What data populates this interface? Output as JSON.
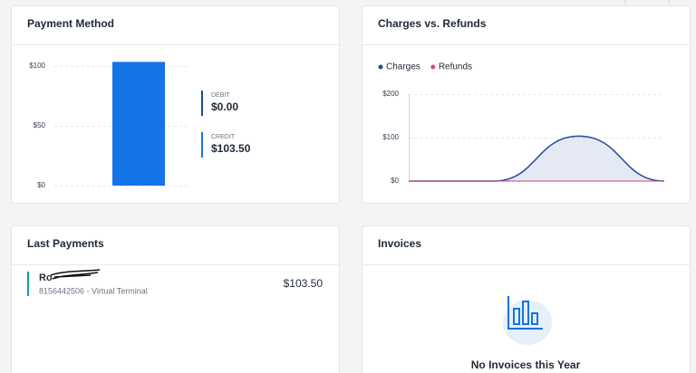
{
  "payment_method": {
    "title": "Payment Method",
    "chart": {
      "type": "bar",
      "categories": [
        null
      ],
      "values": [
        103.5
      ],
      "color": "#1473e6",
      "ylim": [
        0,
        100
      ],
      "yticks": [
        {
          "value": 0,
          "label": "$0"
        },
        {
          "value": 50,
          "label": "$50"
        },
        {
          "value": 100,
          "label": "$100"
        }
      ],
      "grid": true
    },
    "summary": [
      {
        "label": "DEBIT",
        "value": "$0.00",
        "color": "#1f4e99"
      },
      {
        "label": "CREDIT",
        "value": "$103.50",
        "color": "#1473e6"
      }
    ]
  },
  "charges_refunds": {
    "title": "Charges vs. Refunds",
    "chart": {
      "type": "line",
      "categories": [
        null,
        null,
        null,
        null
      ],
      "series": [
        {
          "name": "Charges",
          "color": "#1f4e99",
          "values": [
            0,
            0,
            103.5,
            0
          ]
        },
        {
          "name": "Refunds",
          "color": "#e0457b",
          "values": [
            0,
            0,
            0,
            0
          ]
        }
      ],
      "ylim": [
        0,
        200
      ],
      "yticks": [
        {
          "value": 0,
          "label": "$0"
        },
        {
          "value": 100,
          "label": "$100"
        },
        {
          "value": 200,
          "label": "$200"
        }
      ],
      "grid": true
    }
  },
  "last_payments": {
    "title": "Last Payments",
    "items": [
      {
        "name": "Ro",
        "detail": "8156442506 - Virtual Terminal",
        "amount": "$103.50"
      }
    ]
  },
  "invoices": {
    "title": "Invoices",
    "empty_message": "No Invoices this Year"
  }
}
